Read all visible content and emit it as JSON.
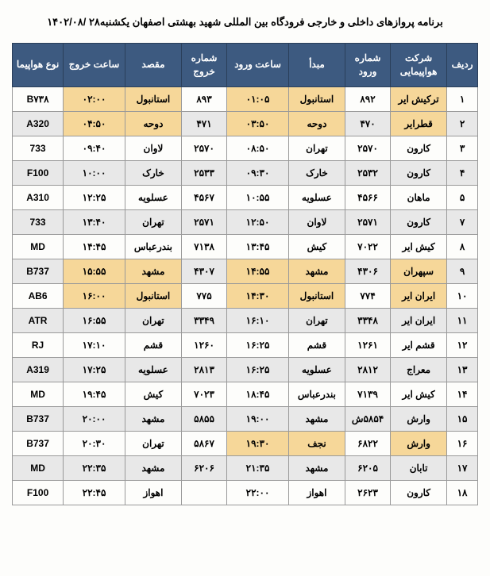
{
  "title": "برنامه پروازهای داخلی و خارجی فرودگاه بین المللی شهید بهشتی اصفهان یکشنبه۲۸ /۱۴۰۲/۰۸",
  "columns": [
    "ردیف",
    "شرکت هواپیمایی",
    "شماره ورود",
    "مبدأ",
    "ساعت ورود",
    "شماره خروج",
    "مقصد",
    "ساعت خروج",
    "نوع هواپیما"
  ],
  "rows": [
    {
      "idx": "۱",
      "airline": "ترکیش ایر",
      "arrno": "۸۹۲",
      "origin": "استانبول",
      "arrtime": "۰۱:۰۵",
      "depno": "۸۹۳",
      "dest": "استانبول",
      "deptime": "۰۲:۰۰",
      "type": "B۷۳۸",
      "hl": [
        "airline",
        "origin",
        "arrtime",
        "dest",
        "deptime"
      ]
    },
    {
      "idx": "۲",
      "airline": "قطرایر",
      "arrno": "۴۷۰",
      "origin": "دوحه",
      "arrtime": "۰۳:۵۰",
      "depno": "۴۷۱",
      "dest": "دوحه",
      "deptime": "۰۴:۵۰",
      "type": "A320",
      "hl": [
        "airline",
        "origin",
        "arrtime",
        "dest",
        "deptime"
      ]
    },
    {
      "idx": "۳",
      "airline": "کارون",
      "arrno": "۲۵۷۰",
      "origin": "تهران",
      "arrtime": "۰۸:۵۰",
      "depno": "۲۵۷۰",
      "dest": "لاوان",
      "deptime": "۰۹:۴۰",
      "type": "733",
      "hl": []
    },
    {
      "idx": "۴",
      "airline": "کارون",
      "arrno": "۲۵۳۲",
      "origin": "خارک",
      "arrtime": "۰۹:۳۰",
      "depno": "۲۵۳۳",
      "dest": "خارک",
      "deptime": "۱۰:۰۰",
      "type": "F100",
      "hl": []
    },
    {
      "idx": "۵",
      "airline": "ماهان",
      "arrno": "۴۵۶۶",
      "origin": "عسلویه",
      "arrtime": "۱۰:۵۵",
      "depno": "۴۵۶۷",
      "dest": "عسلویه",
      "deptime": "۱۲:۲۵",
      "type": "A310",
      "hl": []
    },
    {
      "idx": "۷",
      "airline": "کارون",
      "arrno": "۲۵۷۱",
      "origin": "لاوان",
      "arrtime": "۱۲:۵۰",
      "depno": "۲۵۷۱",
      "dest": "تهران",
      "deptime": "۱۳:۴۰",
      "type": "733",
      "hl": []
    },
    {
      "idx": "۸",
      "airline": "کیش ایر",
      "arrno": "۷۰۲۲",
      "origin": "کیش",
      "arrtime": "۱۳:۴۵",
      "depno": "۷۱۳۸",
      "dest": "بندرعباس",
      "deptime": "۱۴:۴۵",
      "type": "MD",
      "hl": []
    },
    {
      "idx": "۹",
      "airline": "سپهران",
      "arrno": "۴۳۰۶",
      "origin": "مشهد",
      "arrtime": "۱۴:۵۵",
      "depno": "۴۳۰۷",
      "dest": "مشهد",
      "deptime": "۱۵:۵۵",
      "type": "B737",
      "hl": [
        "airline",
        "origin",
        "arrtime",
        "dest",
        "deptime"
      ]
    },
    {
      "idx": "۱۰",
      "airline": "ایران ایر",
      "arrno": "۷۷۴",
      "origin": "استانبول",
      "arrtime": "۱۴:۳۰",
      "depno": "۷۷۵",
      "dest": "استانبول",
      "deptime": "۱۶:۰۰",
      "type": "AB6",
      "hl": [
        "airline",
        "origin",
        "arrtime",
        "dest",
        "deptime"
      ]
    },
    {
      "idx": "۱۱",
      "airline": "ایران ایر",
      "arrno": "۳۳۴۸",
      "origin": "تهران",
      "arrtime": "۱۶:۱۰",
      "depno": "۳۳۴۹",
      "dest": "تهران",
      "deptime": "۱۶:۵۵",
      "type": "ATR",
      "hl": []
    },
    {
      "idx": "۱۲",
      "airline": "قشم ایر",
      "arrno": "۱۲۶۱",
      "origin": "قشم",
      "arrtime": "۱۶:۲۵",
      "depno": "۱۲۶۰",
      "dest": "قشم",
      "deptime": "۱۷:۱۰",
      "type": "RJ",
      "hl": []
    },
    {
      "idx": "۱۳",
      "airline": "معراج",
      "arrno": "۲۸۱۲",
      "origin": "عسلویه",
      "arrtime": "۱۶:۲۵",
      "depno": "۲۸۱۳",
      "dest": "عسلویه",
      "deptime": "۱۷:۲۵",
      "type": "A319",
      "hl": []
    },
    {
      "idx": "۱۴",
      "airline": "کیش ایر",
      "arrno": "۷۱۳۹",
      "origin": "بندرعباس",
      "arrtime": "۱۸:۴۵",
      "depno": "۷۰۲۳",
      "dest": "کیش",
      "deptime": "۱۹:۴۵",
      "type": "MD",
      "hl": []
    },
    {
      "idx": "۱۵",
      "airline": "وارش",
      "arrno": "۵۸۵۴ش",
      "origin": "مشهد",
      "arrtime": "۱۹:۰۰",
      "depno": "۵۸۵۵",
      "dest": "مشهد",
      "deptime": "۲۰:۰۰",
      "type": "B737",
      "hl": []
    },
    {
      "idx": "۱۶",
      "airline": "وارش",
      "arrno": "۶۸۲۲",
      "origin": "نجف",
      "arrtime": "۱۹:۳۰",
      "depno": "۵۸۶۷",
      "dest": "تهران",
      "deptime": "۲۰:۳۰",
      "type": "B737",
      "hl": [
        "airline",
        "origin",
        "arrtime"
      ]
    },
    {
      "idx": "۱۷",
      "airline": "تابان",
      "arrno": "۶۲۰۵",
      "origin": "مشهد",
      "arrtime": "۲۱:۳۵",
      "depno": "۶۲۰۶",
      "dest": "مشهد",
      "deptime": "۲۲:۳۵",
      "type": "MD",
      "hl": []
    },
    {
      "idx": "۱۸",
      "airline": "کارون",
      "arrno": "۲۶۲۳",
      "origin": "اهواز",
      "arrtime": "۲۲:۰۰",
      "depno": "",
      "dest": "اهواز",
      "deptime": "۲۲:۴۵",
      "type": "F100",
      "hl": []
    }
  ]
}
